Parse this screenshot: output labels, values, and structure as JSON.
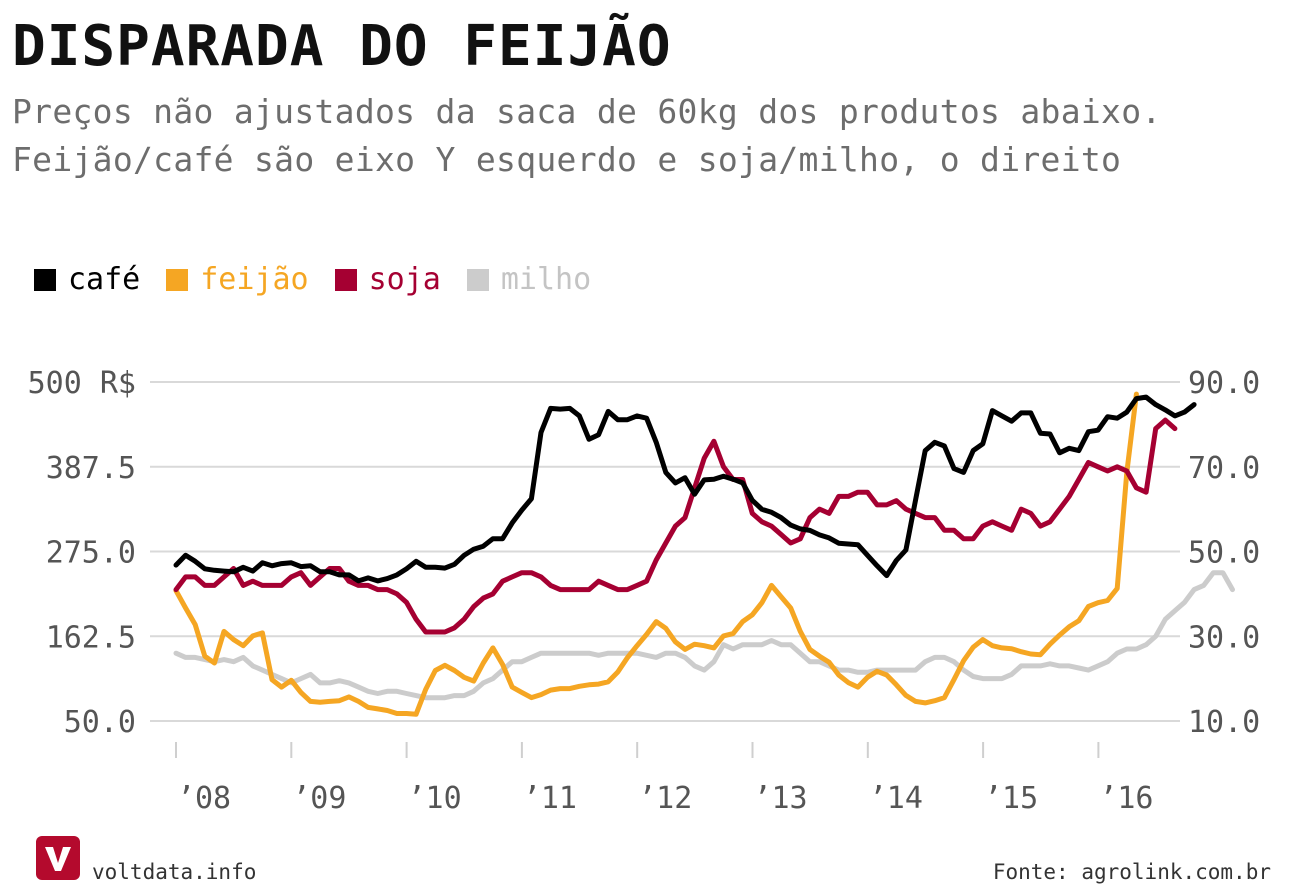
{
  "header": {
    "title": "DISPARADA DO FEIJÃO",
    "subtitle_line1": "Preços não ajustados da saca de 60kg dos produtos abaixo.",
    "subtitle_line2": "Feijão/café são eixo Y esquerdo e soja/milho, o direito"
  },
  "legend": [
    {
      "name": "café",
      "color": "#000000"
    },
    {
      "name": "feijão",
      "color": "#f5a623"
    },
    {
      "name": "soja",
      "color": "#a50032"
    },
    {
      "name": "milho",
      "color": "#cccccc"
    }
  ],
  "footer": {
    "site": "voltdata.info",
    "source": "Fonte: agrolink.com.br",
    "logo_icon": "voltdata-v-logo-icon"
  },
  "chart_data": {
    "type": "line",
    "x_tick_labels": [
      "’08",
      "’09",
      "’10",
      "’11",
      "’12",
      "’13",
      "’14",
      "’15",
      "’16"
    ],
    "x_tick_years": [
      2008,
      2009,
      2010,
      2011,
      2012,
      2013,
      2014,
      2015,
      2016
    ],
    "x_start": 2008,
    "x_step": 0.0833,
    "left_axis": {
      "ticks": [
        "500 R$",
        "387.5",
        "275.0",
        "162.5",
        "50.0"
      ],
      "tick_values": [
        500,
        387.5,
        275,
        162.5,
        50
      ],
      "range": [
        50,
        500
      ]
    },
    "right_axis": {
      "ticks": [
        "90.0",
        "70.0",
        "50.0",
        "30.0",
        "10.0"
      ],
      "tick_values": [
        90,
        70,
        50,
        30,
        10
      ],
      "range": [
        10,
        90
      ]
    },
    "grid": true,
    "series": [
      {
        "name": "café",
        "axis": "left",
        "color": "#000000",
        "values": [
          257,
          270,
          262,
          252,
          250,
          249,
          248,
          254,
          249,
          260,
          256,
          259,
          260,
          255,
          256,
          248,
          248,
          244,
          244,
          236,
          240,
          236,
          239,
          244,
          252,
          262,
          254,
          254,
          253,
          258,
          270,
          278,
          282,
          292,
          292,
          313,
          330,
          345,
          433,
          465,
          464,
          465,
          455,
          424,
          430,
          461,
          450,
          450,
          455,
          452,
          420,
          380,
          366,
          373,
          351,
          370,
          371,
          375,
          371,
          366,
          343,
          331,
          327,
          320,
          310,
          305,
          303,
          297,
          293,
          286,
          285,
          284,
          270,
          256,
          243,
          263,
          277,
          343,
          409,
          420,
          415,
          385,
          380,
          409,
          418,
          462,
          455,
          448,
          459,
          459,
          432,
          431,
          406,
          412,
          409,
          434,
          436,
          454,
          452,
          460,
          478,
          480,
          470,
          463,
          455,
          460,
          470
        ]
      },
      {
        "name": "feijão",
        "axis": "left",
        "color": "#f5a623",
        "values": [
          223,
          200,
          178,
          136,
          127,
          169,
          158,
          150,
          163,
          167,
          105,
          95,
          104,
          88,
          76,
          75,
          76,
          77,
          82,
          76,
          68,
          66,
          64,
          60,
          60,
          59,
          92,
          117,
          124,
          117,
          108,
          103,
          127,
          147,
          125,
          95,
          88,
          81,
          85,
          91,
          93,
          93,
          96,
          98,
          99,
          102,
          115,
          134,
          150,
          165,
          182,
          173,
          155,
          145,
          152,
          150,
          147,
          163,
          166,
          182,
          191,
          207,
          230,
          215,
          200,
          169,
          145,
          136,
          128,
          111,
          101,
          95,
          108,
          116,
          111,
          98,
          84,
          76,
          74,
          77,
          81,
          105,
          130,
          148,
          158,
          150,
          147,
          146,
          142,
          139,
          138,
          152,
          164,
          175,
          183,
          202,
          207,
          210,
          226,
          380,
          484
        ]
      },
      {
        "name": "soja",
        "axis": "right",
        "color": "#a50032",
        "values": [
          41,
          44,
          44,
          42,
          42,
          44,
          46,
          42,
          43,
          42,
          42,
          42,
          44,
          45,
          42,
          44,
          46,
          46,
          43,
          42,
          42,
          41,
          41,
          40,
          38,
          34,
          31,
          31,
          31,
          32,
          34,
          37,
          39,
          40,
          43,
          44,
          45,
          45,
          44,
          42,
          41,
          41,
          41,
          41,
          43,
          42,
          41,
          41,
          42,
          43,
          48,
          52,
          56,
          58,
          65,
          72,
          76,
          70,
          67,
          67,
          59,
          57,
          56,
          54,
          52,
          53,
          58,
          60,
          59,
          63,
          63,
          64,
          64,
          61,
          61,
          62,
          60,
          59,
          58,
          58,
          55,
          55,
          53,
          53,
          56,
          57,
          56,
          55,
          60,
          59,
          56,
          57,
          60,
          63,
          67,
          71,
          70,
          69,
          70,
          69,
          65,
          64,
          79,
          81,
          79
        ]
      },
      {
        "name": "milho",
        "axis": "right",
        "color": "#cccccc",
        "values": [
          26,
          25,
          25,
          24.5,
          24,
          24.5,
          24,
          25,
          23,
          22,
          21,
          20,
          19,
          20,
          21,
          19,
          19,
          19.5,
          19,
          18,
          17,
          16.5,
          17,
          17,
          16.5,
          16,
          15.5,
          15.5,
          15.5,
          16,
          16,
          17,
          19,
          20,
          22,
          24,
          24,
          25,
          26,
          26,
          26,
          26,
          26,
          26,
          25.5,
          26,
          26,
          26,
          26,
          25.5,
          25,
          26,
          26,
          25,
          23,
          22,
          24,
          28,
          27,
          28,
          28,
          28,
          29,
          28,
          28,
          26,
          24,
          24,
          23,
          22,
          22,
          21.5,
          21.5,
          22,
          22,
          22,
          22,
          22,
          24,
          25,
          25,
          24,
          22,
          20.5,
          20,
          20,
          20,
          21,
          23,
          23,
          23,
          23.5,
          23,
          23,
          22.5,
          22,
          23,
          24,
          26,
          27,
          27,
          28,
          30,
          34,
          36,
          38,
          41,
          42,
          45,
          45,
          41
        ]
      }
    ]
  }
}
